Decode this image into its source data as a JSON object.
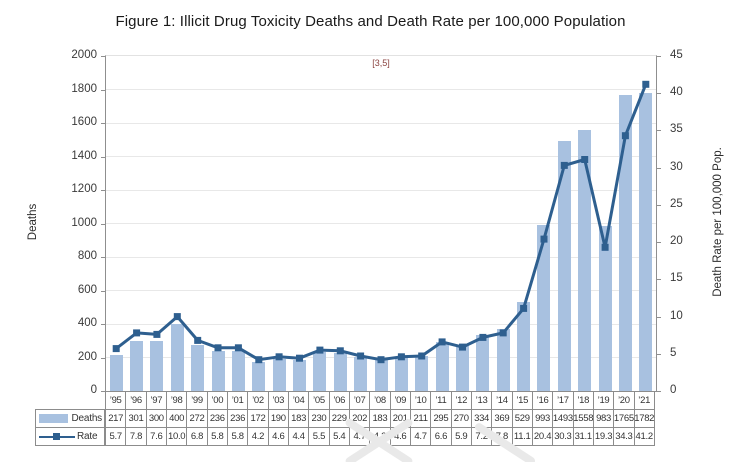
{
  "figure": {
    "title": "Figure 1: Illicit Drug Toxicity Deaths and Death Rate per 100,000 Population",
    "citation": "[3,5]"
  },
  "axes": {
    "left_label": "Deaths",
    "right_label": "Death Rate per 100,000 Pop."
  },
  "legend": {
    "deaths": "Deaths",
    "rate": "Rate"
  },
  "colors": {
    "bar": "#a8c1e0",
    "line": "#2e5f8f",
    "citation_text": "#8b4340"
  },
  "chart_data": {
    "type": "combo",
    "title": "Figure 1: Illicit Drug Toxicity Deaths and Death Rate per 100,000 Population",
    "annotation": "[3,5]",
    "categories": [
      "’95",
      "’96",
      "’97",
      "’98",
      "’99",
      "’00",
      "’01",
      "’02",
      "’03",
      "’04",
      "’05",
      "’06",
      "’07",
      "’08",
      "’09",
      "’10",
      "’11",
      "’12",
      "’13",
      "’14",
      "’15",
      "’16",
      "’17",
      "’18",
      "’19",
      "’20",
      "’21"
    ],
    "series": [
      {
        "name": "Deaths",
        "type": "bar",
        "axis": "left",
        "values": [
          217,
          301,
          300,
          400,
          272,
          236,
          236,
          172,
          190,
          183,
          230,
          229,
          202,
          183,
          201,
          211,
          295,
          270,
          334,
          369,
          529,
          993,
          1493,
          1558,
          983,
          1765,
          1782
        ]
      },
      {
        "name": "Rate",
        "type": "line",
        "axis": "right",
        "values": [
          5.7,
          7.8,
          7.6,
          10.0,
          6.8,
          5.8,
          5.8,
          4.2,
          4.6,
          4.4,
          5.5,
          5.4,
          4.7,
          4.2,
          4.6,
          4.7,
          6.6,
          5.9,
          7.2,
          7.8,
          11.1,
          20.4,
          30.3,
          31.1,
          19.3,
          34.3,
          41.2
        ]
      }
    ],
    "ylabel_left": "Deaths",
    "ylim_left": [
      0,
      2000
    ],
    "ytick_step_left": 200,
    "ylabel_right": "Death Rate per 100,000 Pop.",
    "ylim_right": [
      0,
      45
    ],
    "ytick_step_right": 5,
    "grid": true,
    "legend_position": "table-left"
  }
}
